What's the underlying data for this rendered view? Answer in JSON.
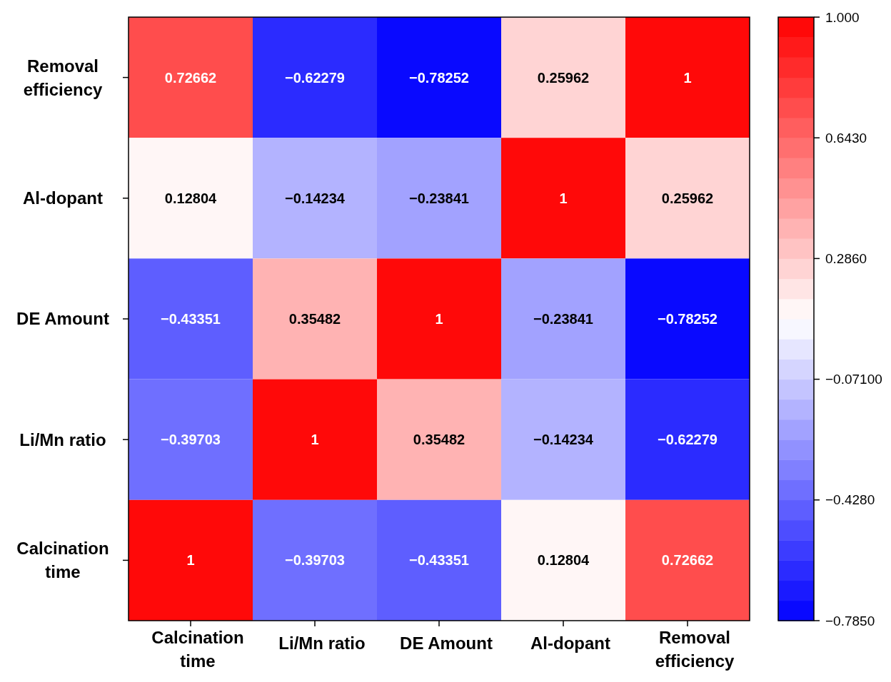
{
  "chart_data": {
    "type": "heatmap",
    "categories": [
      "Calcination time",
      "Li/Mn ratio",
      "DE Amount",
      "Al-dopant",
      "Removal efficiency"
    ],
    "y_categories": [
      "Removal efficiency",
      "Al-dopant",
      "DE Amount",
      "Li/Mn ratio",
      "Calcination time"
    ],
    "cells": [
      [
        0.72662,
        -0.62279,
        -0.78252,
        0.25962,
        1
      ],
      [
        0.12804,
        -0.14234,
        -0.23841,
        1,
        0.25962
      ],
      [
        -0.43351,
        0.35482,
        1,
        -0.23841,
        -0.78252
      ],
      [
        -0.39703,
        1,
        0.35482,
        -0.14234,
        -0.62279
      ],
      [
        1,
        -0.39703,
        -0.43351,
        0.12804,
        0.72662
      ]
    ],
    "cell_labels": [
      [
        "0.72662",
        "−0.62279",
        "−0.78252",
        "0.25962",
        "1"
      ],
      [
        "0.12804",
        "−0.14234",
        "−0.23841",
        "1",
        "0.25962"
      ],
      [
        "−0.43351",
        "0.35482",
        "1",
        "−0.23841",
        "−0.78252"
      ],
      [
        "−0.39703",
        "1",
        "0.35482",
        "−0.14234",
        "−0.62279"
      ],
      [
        "1",
        "−0.39703",
        "−0.43351",
        "0.12804",
        "0.72662"
      ]
    ],
    "clim": [
      -0.785,
      1
    ],
    "cticks": [
      {
        "value": 1,
        "label": "1.000"
      },
      {
        "value": 0.643,
        "label": "0.6430"
      },
      {
        "value": 0.286,
        "label": "0.2860"
      },
      {
        "value": -0.071,
        "label": "−0.07100"
      },
      {
        "value": -0.428,
        "label": "−0.4280"
      },
      {
        "value": -0.785,
        "label": "−0.7850"
      }
    ]
  }
}
